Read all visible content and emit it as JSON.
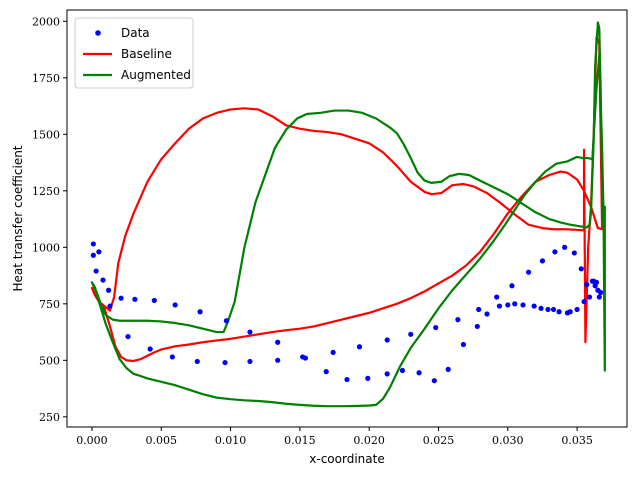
{
  "chart_data": {
    "type": "line",
    "title": "",
    "xlabel": "x-coordinate",
    "ylabel": "Heat transfer coefficient",
    "xlim": [
      -0.0018,
      0.0386
    ],
    "ylim": [
      205,
      2050
    ],
    "xticks": [
      0.0,
      0.005,
      0.01,
      0.015,
      0.02,
      0.025,
      0.03,
      0.035
    ],
    "xtick_labels": [
      "0.000",
      "0.005",
      "0.010",
      "0.015",
      "0.020",
      "0.025",
      "0.030",
      "0.035"
    ],
    "yticks": [
      250,
      500,
      750,
      1000,
      1250,
      1500,
      1750,
      2000
    ],
    "ytick_labels": [
      "250",
      "500",
      "750",
      "1000",
      "1250",
      "1500",
      "1750",
      "2000"
    ],
    "grid": false,
    "legend_position": "top-left",
    "series": [
      {
        "name": "Data",
        "kind": "scatter",
        "color": "#0000ff",
        "points": [
          [
            0.0001,
            1015
          ],
          [
            0.0001,
            965
          ],
          [
            0.0003,
            895
          ],
          [
            0.0005,
            980
          ],
          [
            0.0008,
            855
          ],
          [
            0.0012,
            810
          ],
          [
            0.0013,
            740
          ],
          [
            0.0021,
            775
          ],
          [
            0.0026,
            605
          ],
          [
            0.0031,
            770
          ],
          [
            0.0042,
            550
          ],
          [
            0.0045,
            765
          ],
          [
            0.0058,
            515
          ],
          [
            0.006,
            745
          ],
          [
            0.0076,
            495
          ],
          [
            0.0078,
            715
          ],
          [
            0.0096,
            490
          ],
          [
            0.0097,
            675
          ],
          [
            0.0114,
            495
          ],
          [
            0.0114,
            625
          ],
          [
            0.0134,
            500
          ],
          [
            0.0134,
            580
          ],
          [
            0.0152,
            515
          ],
          [
            0.0154,
            510
          ],
          [
            0.0169,
            450
          ],
          [
            0.0174,
            535
          ],
          [
            0.0184,
            415
          ],
          [
            0.0193,
            560
          ],
          [
            0.0199,
            420
          ],
          [
            0.0213,
            440
          ],
          [
            0.0213,
            590
          ],
          [
            0.0224,
            455
          ],
          [
            0.023,
            615
          ],
          [
            0.0236,
            445
          ],
          [
            0.0247,
            410
          ],
          [
            0.0248,
            645
          ],
          [
            0.0257,
            460
          ],
          [
            0.0264,
            680
          ],
          [
            0.0268,
            570
          ],
          [
            0.0278,
            650
          ],
          [
            0.0279,
            725
          ],
          [
            0.0285,
            705
          ],
          [
            0.0292,
            780
          ],
          [
            0.0294,
            740
          ],
          [
            0.03,
            745
          ],
          [
            0.0303,
            830
          ],
          [
            0.0305,
            750
          ],
          [
            0.0311,
            745
          ],
          [
            0.0315,
            890
          ],
          [
            0.0319,
            740
          ],
          [
            0.0324,
            730
          ],
          [
            0.0325,
            940
          ],
          [
            0.0329,
            725
          ],
          [
            0.0333,
            725
          ],
          [
            0.0334,
            980
          ],
          [
            0.0337,
            715
          ],
          [
            0.0341,
            1000
          ],
          [
            0.0343,
            710
          ],
          [
            0.0345,
            715
          ],
          [
            0.0348,
            975
          ],
          [
            0.035,
            725
          ],
          [
            0.0353,
            905
          ],
          [
            0.0355,
            760
          ],
          [
            0.0357,
            835
          ],
          [
            0.0359,
            780
          ],
          [
            0.0361,
            850
          ],
          [
            0.0362,
            850
          ],
          [
            0.0363,
            830
          ],
          [
            0.0364,
            845
          ],
          [
            0.0365,
            810
          ],
          [
            0.0366,
            780
          ],
          [
            0.0367,
            800
          ]
        ]
      },
      {
        "name": "Baseline",
        "kind": "line",
        "color": "#ff0000",
        "points": [
          [
            0.0,
            820
          ],
          [
            0.0002,
            790
          ],
          [
            0.0005,
            760
          ],
          [
            0.0009,
            740
          ],
          [
            0.0013,
            720
          ],
          [
            0.0016,
            780
          ],
          [
            0.0019,
            930
          ],
          [
            0.0024,
            1050
          ],
          [
            0.003,
            1150
          ],
          [
            0.004,
            1290
          ],
          [
            0.005,
            1390
          ],
          [
            0.006,
            1460
          ],
          [
            0.007,
            1525
          ],
          [
            0.008,
            1570
          ],
          [
            0.009,
            1595
          ],
          [
            0.01,
            1610
          ],
          [
            0.011,
            1615
          ],
          [
            0.012,
            1610
          ],
          [
            0.013,
            1580
          ],
          [
            0.014,
            1540
          ],
          [
            0.015,
            1525
          ],
          [
            0.016,
            1515
          ],
          [
            0.017,
            1510
          ],
          [
            0.018,
            1500
          ],
          [
            0.019,
            1480
          ],
          [
            0.02,
            1460
          ],
          [
            0.021,
            1420
          ],
          [
            0.022,
            1360
          ],
          [
            0.023,
            1290
          ],
          [
            0.024,
            1245
          ],
          [
            0.0245,
            1235
          ],
          [
            0.0252,
            1240
          ],
          [
            0.026,
            1275
          ],
          [
            0.0268,
            1280
          ],
          [
            0.0275,
            1270
          ],
          [
            0.0285,
            1240
          ],
          [
            0.0295,
            1195
          ],
          [
            0.0305,
            1145
          ],
          [
            0.0315,
            1100
          ],
          [
            0.0325,
            1085
          ],
          [
            0.0333,
            1080
          ],
          [
            0.0341,
            1080
          ],
          [
            0.0348,
            1078
          ],
          [
            0.0355,
            1075
          ],
          [
            0.0355,
            1432
          ],
          [
            0.0356,
            580
          ],
          [
            0.0358,
            1000
          ],
          [
            0.036,
            1180
          ],
          [
            0.0362,
            1500
          ],
          [
            0.0364,
            1930
          ],
          [
            0.0366,
            1900
          ],
          [
            0.0368,
            1090
          ],
          [
            0.0369,
            1160
          ],
          [
            0.0369,
            1080
          ],
          [
            0.0365,
            1085
          ],
          [
            0.036,
            1180
          ],
          [
            0.0355,
            1250
          ],
          [
            0.035,
            1300
          ],
          [
            0.0343,
            1330
          ],
          [
            0.0338,
            1335
          ],
          [
            0.033,
            1320
          ],
          [
            0.032,
            1290
          ],
          [
            0.031,
            1225
          ],
          [
            0.03,
            1150
          ],
          [
            0.029,
            1060
          ],
          [
            0.028,
            980
          ],
          [
            0.027,
            920
          ],
          [
            0.026,
            875
          ],
          [
            0.025,
            840
          ],
          [
            0.024,
            805
          ],
          [
            0.023,
            775
          ],
          [
            0.022,
            750
          ],
          [
            0.021,
            730
          ],
          [
            0.02,
            710
          ],
          [
            0.019,
            695
          ],
          [
            0.018,
            680
          ],
          [
            0.017,
            665
          ],
          [
            0.016,
            650
          ],
          [
            0.015,
            640
          ],
          [
            0.014,
            633
          ],
          [
            0.013,
            625
          ],
          [
            0.012,
            615
          ],
          [
            0.011,
            605
          ],
          [
            0.01,
            595
          ],
          [
            0.009,
            588
          ],
          [
            0.008,
            580
          ],
          [
            0.007,
            570
          ],
          [
            0.006,
            562
          ],
          [
            0.005,
            548
          ],
          [
            0.0045,
            535
          ],
          [
            0.004,
            520
          ],
          [
            0.0035,
            505
          ],
          [
            0.003,
            497
          ],
          [
            0.0025,
            500
          ],
          [
            0.0021,
            515
          ],
          [
            0.0017,
            560
          ],
          [
            0.0013,
            650
          ],
          [
            0.0009,
            730
          ],
          [
            0.0005,
            760
          ],
          [
            0.0002,
            790
          ],
          [
            0.0,
            820
          ]
        ]
      },
      {
        "name": "Augmented",
        "kind": "line",
        "color": "#008000",
        "points": [
          [
            0.0,
            845
          ],
          [
            0.0002,
            825
          ],
          [
            0.0004,
            790
          ],
          [
            0.0007,
            740
          ],
          [
            0.001,
            700
          ],
          [
            0.0015,
            680
          ],
          [
            0.002,
            675
          ],
          [
            0.003,
            675
          ],
          [
            0.004,
            675
          ],
          [
            0.005,
            672
          ],
          [
            0.006,
            665
          ],
          [
            0.007,
            655
          ],
          [
            0.008,
            640
          ],
          [
            0.009,
            625
          ],
          [
            0.0095,
            625
          ],
          [
            0.0098,
            670
          ],
          [
            0.0103,
            760
          ],
          [
            0.011,
            1000
          ],
          [
            0.0118,
            1200
          ],
          [
            0.0125,
            1320
          ],
          [
            0.0132,
            1440
          ],
          [
            0.014,
            1520
          ],
          [
            0.0148,
            1570
          ],
          [
            0.0155,
            1590
          ],
          [
            0.0165,
            1595
          ],
          [
            0.0175,
            1605
          ],
          [
            0.0185,
            1605
          ],
          [
            0.0195,
            1595
          ],
          [
            0.0205,
            1570
          ],
          [
            0.0215,
            1530
          ],
          [
            0.022,
            1505
          ],
          [
            0.0225,
            1455
          ],
          [
            0.023,
            1395
          ],
          [
            0.0235,
            1330
          ],
          [
            0.024,
            1295
          ],
          [
            0.0245,
            1285
          ],
          [
            0.0252,
            1290
          ],
          [
            0.0258,
            1315
          ],
          [
            0.0265,
            1325
          ],
          [
            0.0272,
            1320
          ],
          [
            0.028,
            1295
          ],
          [
            0.029,
            1265
          ],
          [
            0.03,
            1235
          ],
          [
            0.031,
            1195
          ],
          [
            0.032,
            1155
          ],
          [
            0.033,
            1125
          ],
          [
            0.0338,
            1110
          ],
          [
            0.0345,
            1100
          ],
          [
            0.035,
            1095
          ],
          [
            0.0355,
            1090
          ],
          [
            0.0357,
            1088
          ],
          [
            0.0359,
            1100
          ],
          [
            0.036,
            1150
          ],
          [
            0.0362,
            1480
          ],
          [
            0.0363,
            1800
          ],
          [
            0.0365,
            1995
          ],
          [
            0.0366,
            1970
          ],
          [
            0.0367,
            1700
          ],
          [
            0.0368,
            1300
          ],
          [
            0.0369,
            1090
          ],
          [
            0.037,
            1180
          ],
          [
            0.037,
            455
          ],
          [
            0.0369,
            1170
          ],
          [
            0.0368,
            1450
          ],
          [
            0.0366,
            1850
          ],
          [
            0.0364,
            1700
          ],
          [
            0.0361,
            1390
          ],
          [
            0.0358,
            1395
          ],
          [
            0.0354,
            1395
          ],
          [
            0.035,
            1400
          ],
          [
            0.0343,
            1380
          ],
          [
            0.0335,
            1370
          ],
          [
            0.0327,
            1335
          ],
          [
            0.032,
            1290
          ],
          [
            0.0312,
            1230
          ],
          [
            0.0305,
            1165
          ],
          [
            0.0298,
            1100
          ],
          [
            0.029,
            1030
          ],
          [
            0.028,
            950
          ],
          [
            0.027,
            880
          ],
          [
            0.026,
            810
          ],
          [
            0.025,
            730
          ],
          [
            0.024,
            640
          ],
          [
            0.023,
            555
          ],
          [
            0.0222,
            470
          ],
          [
            0.0215,
            380
          ],
          [
            0.021,
            330
          ],
          [
            0.0205,
            303
          ],
          [
            0.02,
            300
          ],
          [
            0.019,
            298
          ],
          [
            0.018,
            297
          ],
          [
            0.017,
            297
          ],
          [
            0.016,
            299
          ],
          [
            0.015,
            303
          ],
          [
            0.014,
            308
          ],
          [
            0.013,
            315
          ],
          [
            0.012,
            320
          ],
          [
            0.011,
            323
          ],
          [
            0.01,
            328
          ],
          [
            0.009,
            335
          ],
          [
            0.008,
            350
          ],
          [
            0.007,
            370
          ],
          [
            0.006,
            390
          ],
          [
            0.005,
            405
          ],
          [
            0.004,
            420
          ],
          [
            0.0033,
            435
          ],
          [
            0.003,
            440
          ],
          [
            0.0025,
            465
          ],
          [
            0.002,
            505
          ],
          [
            0.0015,
            580
          ],
          [
            0.001,
            660
          ],
          [
            0.0006,
            740
          ],
          [
            0.0003,
            800
          ],
          [
            0.0,
            845
          ]
        ]
      }
    ]
  }
}
